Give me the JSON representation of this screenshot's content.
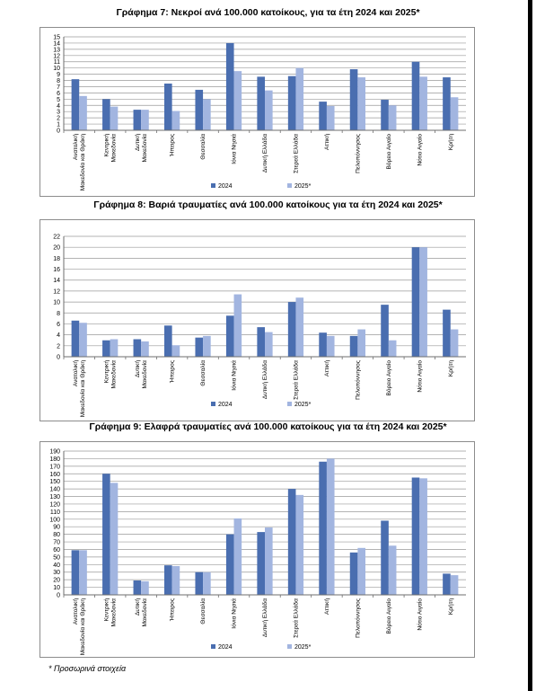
{
  "colors": {
    "s2024": "#4a6eb0",
    "s2025": "#a2b5e0",
    "grid": "#9a9a9a",
    "axis": "#6e6e6e"
  },
  "footnote": "* Προσωρινά στοιχεία",
  "chart_data": [
    {
      "type": "bar",
      "title": "Γράφημα 7: Νεκροί ανά 100.000 κατοίκους, για τα έτη 2024 και 2025*",
      "categories": [
        "Ανατολική Μακεδονία και Θράκη",
        "Κεντρική Μακεδονία",
        "Δυτική Μακεδονία",
        "Ήπειρος",
        "Θεσσαλία",
        "Ιόνια Νησιά",
        "Δυτική Ελλάδα",
        "Στερεά Ελλάδα",
        "Αττική",
        "Πελοπόννησος",
        "Βόρειο Αιγαίο",
        "Νότιο Αιγαίο",
        "Κρήτη"
      ],
      "series": [
        {
          "name": "2024",
          "values": [
            8.2,
            5.0,
            3.3,
            7.5,
            6.5,
            14.0,
            8.6,
            8.7,
            4.6,
            9.8,
            4.9,
            11.0,
            8.5
          ]
        },
        {
          "name": "2025*",
          "values": [
            5.5,
            3.8,
            3.3,
            3.1,
            5.0,
            9.5,
            6.4,
            10.0,
            3.9,
            8.5,
            4.0,
            8.6,
            5.3
          ]
        }
      ],
      "ylim": [
        0,
        15
      ],
      "yticks": [
        "0",
        "1",
        "2",
        "3",
        "4",
        "5",
        "6",
        "7",
        "8",
        "9",
        "10",
        "11",
        "12",
        "13",
        "14",
        "15"
      ],
      "grid": true,
      "legend": "bottom"
    },
    {
      "type": "bar",
      "title": "Γράφημα 8: Βαριά τραυματίες ανά 100.000 κατοίκους για τα έτη 2024 και 2025*",
      "categories": [
        "Ανατολική Μακεδονία και Θράκη",
        "Κεντρική Μακεδονία",
        "Δυτική Μακεδονία",
        "Ήπειρος",
        "Θεσσαλία",
        "Ιόνια Νησιά",
        "Δυτική Ελλάδα",
        "Στερεά Ελλάδα",
        "Αττική",
        "Πελοπόννησος",
        "Βόρειο Αιγαίο",
        "Νότιο Αιγαίο",
        "Κρήτη"
      ],
      "series": [
        {
          "name": "2024",
          "values": [
            6.6,
            3.0,
            3.2,
            5.7,
            3.5,
            7.5,
            5.4,
            10.0,
            4.4,
            3.8,
            9.5,
            20.0,
            8.6
          ]
        },
        {
          "name": "2025*",
          "values": [
            6.2,
            3.2,
            2.8,
            2.1,
            3.8,
            11.4,
            4.5,
            10.8,
            3.8,
            5.0,
            3.0,
            20.0,
            5.0
          ]
        }
      ],
      "ylim": [
        0,
        22
      ],
      "yticks": [
        "0",
        "2",
        "4",
        "6",
        "8",
        "10",
        "12",
        "14",
        "16",
        "18",
        "20",
        "22"
      ],
      "grid": true,
      "legend": "bottom"
    },
    {
      "type": "bar",
      "title": "Γράφημα 9: Ελαφρά τραυματίες ανά 100.000 κατοίκους για τα έτη 2024 και 2025*",
      "categories": [
        "Ανατολική Μακεδονία και Θράκη",
        "Κεντρική Μακεδονία",
        "Δυτική Μακεδονία",
        "Ήπειρος",
        "Θεσσαλία",
        "Ιόνια Νησιά",
        "Δυτική Ελλάδα",
        "Στερεά Ελλάδα",
        "Αττική",
        "Πελοπόννησος",
        "Βόρειο Αιγαίο",
        "Νότιο Αιγαίο",
        "Κρήτη"
      ],
      "series": [
        {
          "name": "2024",
          "values": [
            59,
            160,
            19,
            39,
            30,
            80,
            83,
            140,
            176,
            56,
            98,
            155,
            28
          ]
        },
        {
          "name": "2025*",
          "values": [
            59,
            148,
            18,
            38,
            30,
            101,
            89,
            132,
            180,
            62,
            65,
            154,
            26
          ]
        }
      ],
      "ylim": [
        0,
        190
      ],
      "yticks": [
        "0",
        "10",
        "20",
        "30",
        "40",
        "50",
        "60",
        "70",
        "80",
        "90",
        "100",
        "110",
        "120",
        "130",
        "140",
        "150",
        "160",
        "170",
        "180",
        "190"
      ],
      "grid": true,
      "legend": "bottom"
    }
  ]
}
